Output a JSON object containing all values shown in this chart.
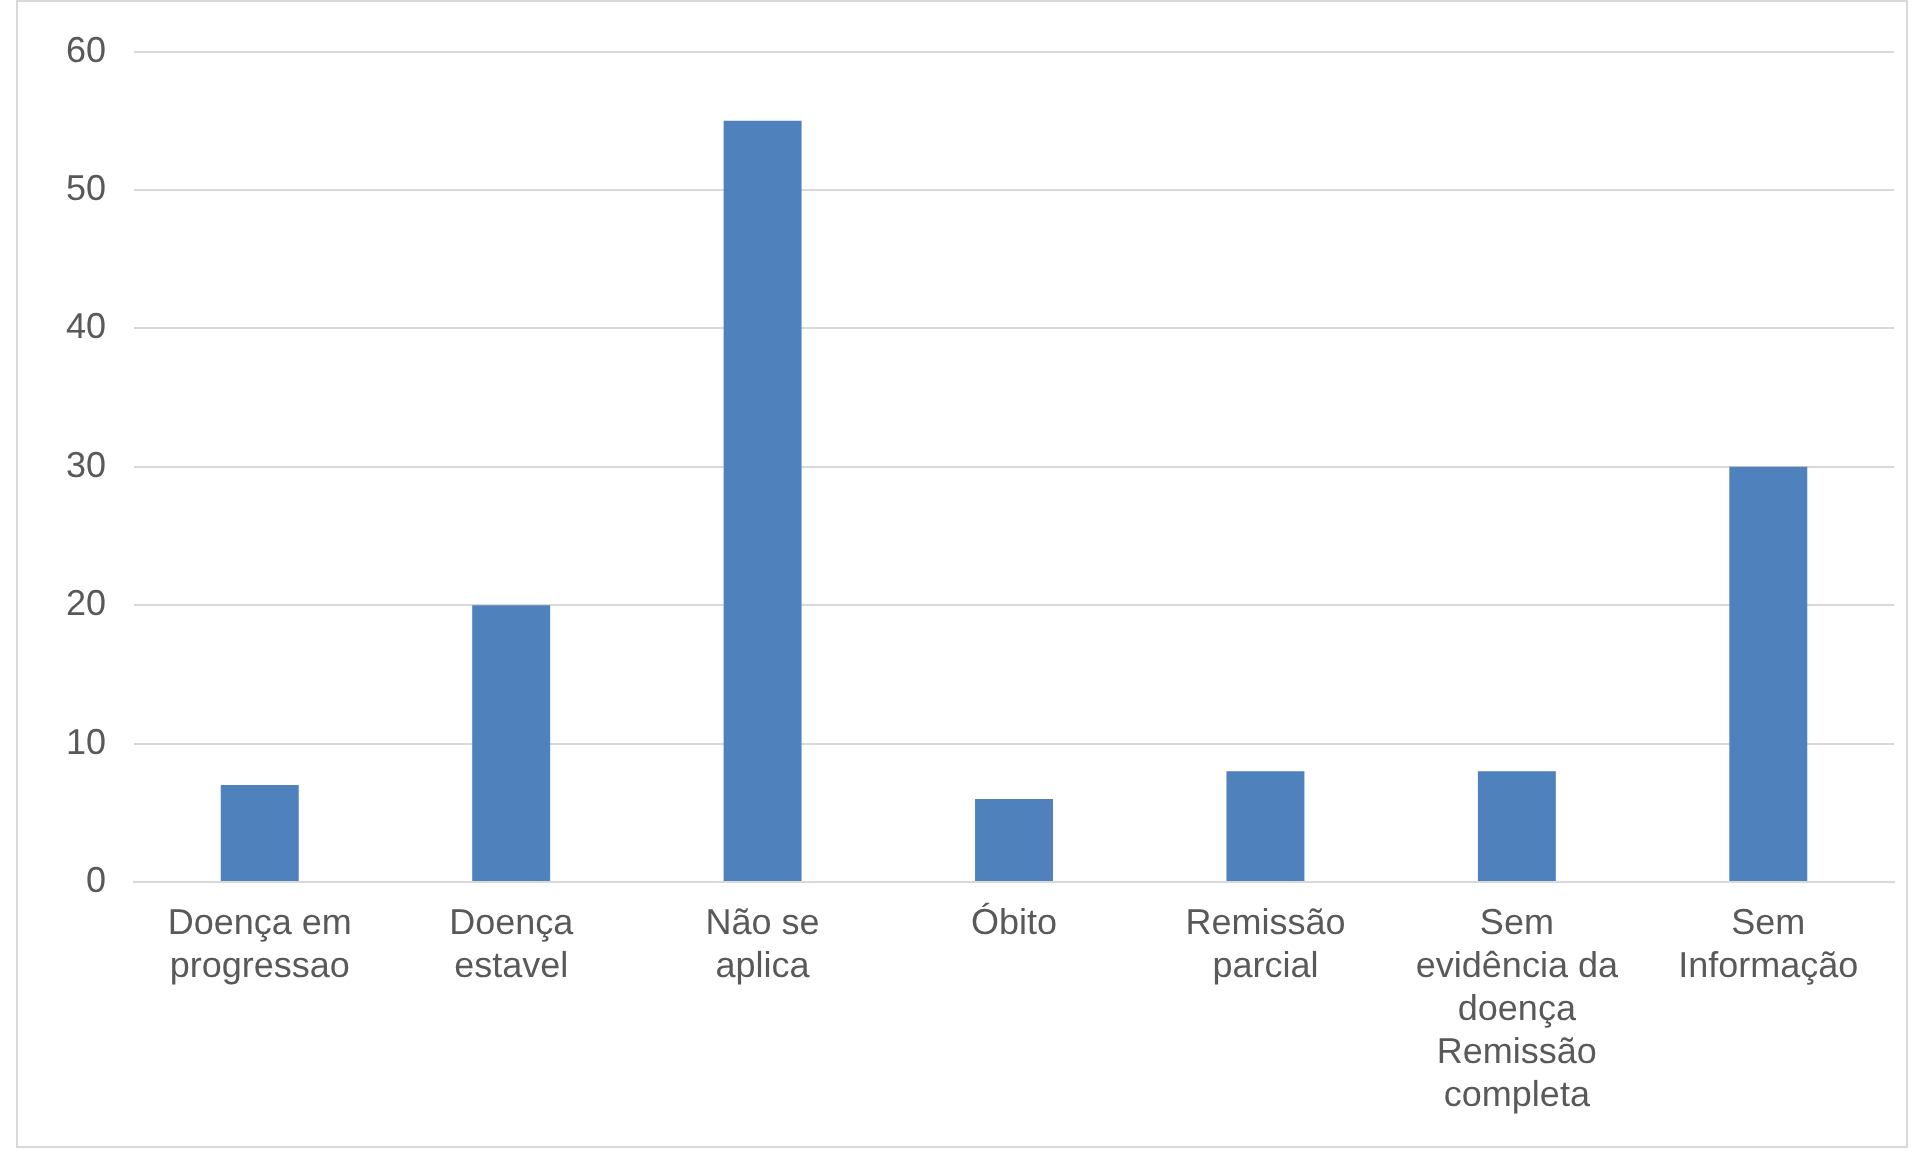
{
  "chart_data": {
    "type": "bar",
    "categories": [
      "Doença em progressao",
      "Doença estavel",
      "Não se aplica",
      "Óbito",
      "Remissão parcial",
      "Sem evidência da doença Remissão completa",
      "Sem Informação"
    ],
    "values": [
      7,
      20,
      55,
      6,
      8,
      8,
      30
    ],
    "color": "#4f81bd",
    "ylim": [
      0,
      60
    ],
    "yticks": [
      0,
      10,
      20,
      30,
      40,
      50,
      60
    ],
    "grid": "y",
    "legend": false
  }
}
